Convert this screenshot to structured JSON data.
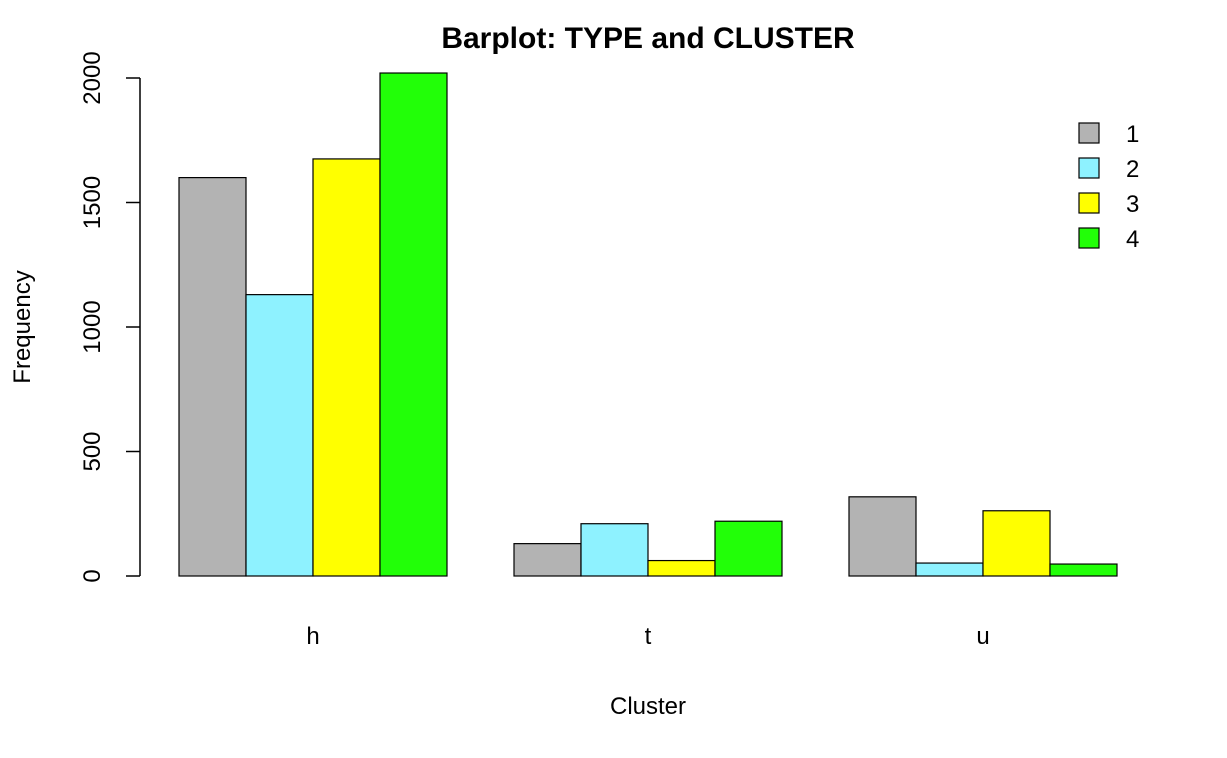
{
  "chart_data": {
    "type": "bar",
    "title": "Barplot: TYPE and CLUSTER",
    "xlabel": "Cluster",
    "ylabel": "Frequency",
    "categories": [
      "h",
      "t",
      "u"
    ],
    "series": [
      {
        "name": "1",
        "color": "#b3b3b3",
        "values": [
          1600,
          130,
          318
        ]
      },
      {
        "name": "2",
        "color": "#8ef2ff",
        "values": [
          1130,
          210,
          52
        ]
      },
      {
        "name": "3",
        "color": "#ffff00",
        "values": [
          1675,
          62,
          262
        ]
      },
      {
        "name": "4",
        "color": "#22ff08",
        "values": [
          2020,
          220,
          48
        ]
      }
    ],
    "ylim": [
      0,
      2000
    ],
    "yticks": [
      0,
      500,
      1000,
      1500,
      2000
    ],
    "grid": false,
    "legend_position": "top-right"
  }
}
